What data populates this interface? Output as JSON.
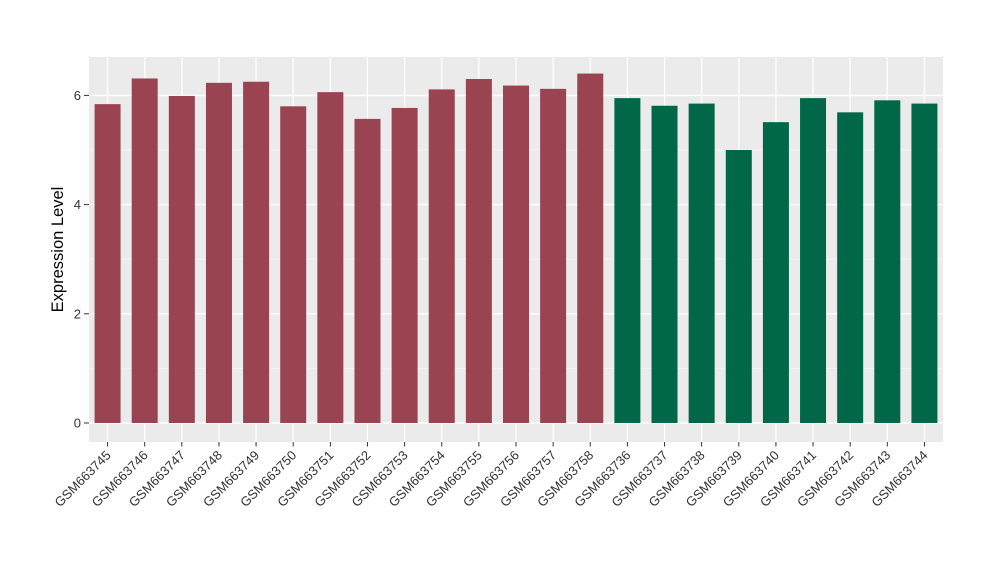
{
  "chart_data": {
    "type": "bar",
    "title": "",
    "xlabel": "",
    "ylabel": "Expression Level",
    "ylim": [
      0,
      6.72
    ],
    "yticks": [
      0,
      2,
      4,
      6
    ],
    "yticks_minor": [
      1,
      3,
      5
    ],
    "grid": "on",
    "legend": "none",
    "panel_background": "#EBEBEB",
    "grid_major_color": "#FFFFFF",
    "grid_minor_color": "#F5F5F5",
    "axis_text_color": "#333333",
    "axis_title_color": "#000000",
    "tick_color": "#333333",
    "series": [
      {
        "name": "GSM663745-GSM663758",
        "color": "#9A4351",
        "categories": [
          "GSM663745",
          "GSM663746",
          "GSM663747",
          "GSM663748",
          "GSM663749",
          "GSM663750",
          "GSM663751",
          "GSM663752",
          "GSM663753",
          "GSM663754",
          "GSM663755",
          "GSM663756",
          "GSM663757",
          "GSM663758"
        ],
        "values": [
          5.84,
          6.31,
          5.99,
          6.23,
          6.25,
          5.8,
          6.06,
          5.57,
          5.77,
          6.11,
          6.3,
          6.18,
          6.12,
          6.4
        ]
      },
      {
        "name": "GSM663736-GSM663744",
        "color": "#006849",
        "categories": [
          "GSM663736",
          "GSM663737",
          "GSM663738",
          "GSM663739",
          "GSM663740",
          "GSM663741",
          "GSM663742",
          "GSM663743",
          "GSM663744"
        ],
        "values": [
          5.95,
          5.81,
          5.85,
          5.0,
          5.51,
          5.95,
          5.69,
          5.91,
          5.85
        ]
      }
    ]
  }
}
